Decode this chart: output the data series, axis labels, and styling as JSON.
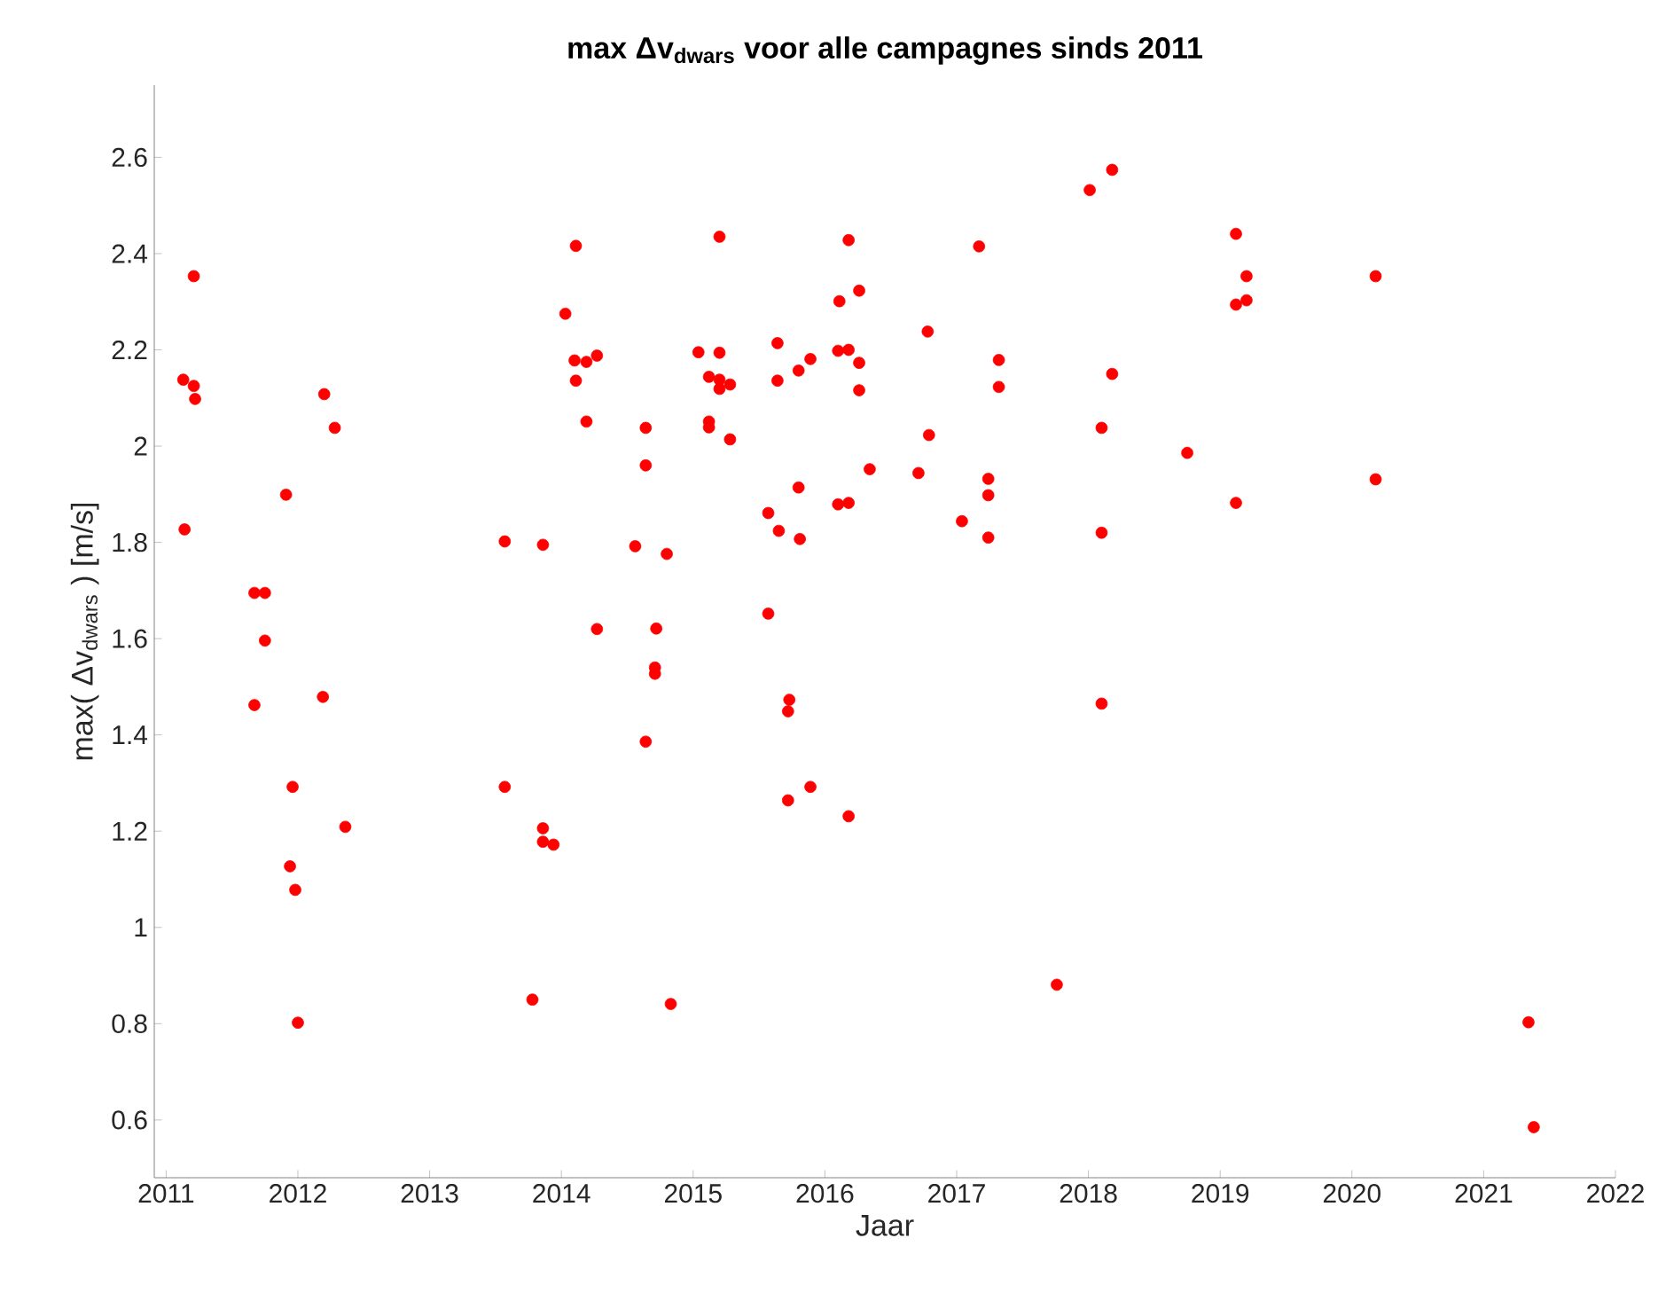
{
  "chart_data": {
    "type": "scatter",
    "title": "max Δv$_{dwars}$ voor alle campagnes sinds 2011",
    "xlabel": "Jaar",
    "ylabel": "max( Δv$_{dwars}$ )  [m/s]",
    "x": [
      2011.21,
      2011.13,
      2011.21,
      2011.22,
      2012.2,
      2012.28,
      2011.91,
      2011.14,
      2011.67,
      2011.75,
      2011.75,
      2011.67,
      2012.19,
      2011.96,
      2012.36,
      2011.94,
      2011.98,
      2012.0,
      2014.11,
      2014.03,
      2014.1,
      2014.19,
      2014.27,
      2014.11,
      2014.19,
      2014.64,
      2014.64,
      2013.57,
      2013.86,
      2014.56,
      2014.8,
      2014.27,
      2014.72,
      2014.71,
      2014.71,
      2014.64,
      2013.57,
      2013.86,
      2013.86,
      2013.94,
      2013.78,
      2014.83,
      2015.2,
      2016.18,
      2017.17,
      2018.01,
      2018.18,
      2016.11,
      2016.26,
      2016.78,
      2015.04,
      2015.2,
      2015.64,
      2015.12,
      2015.2,
      2015.2,
      2015.28,
      2015.8,
      2015.89,
      2015.64,
      2016.1,
      2016.18,
      2016.26,
      2016.26,
      2017.32,
      2017.32,
      2018.18,
      2015.12,
      2015.12,
      2015.28,
      2016.79,
      2018.1,
      2016.34,
      2016.71,
      2017.24,
      2017.24,
      2015.8,
      2015.57,
      2015.65,
      2015.81,
      2016.1,
      2016.18,
      2017.04,
      2017.24,
      2018.1,
      2015.57,
      2015.73,
      2015.72,
      2018.1,
      2015.89,
      2015.72,
      2016.18,
      2017.76,
      2019.12,
      2019.2,
      2019.12,
      2019.2,
      2020.18,
      2018.75,
      2019.12,
      2020.18,
      2021.34,
      2021.38
    ],
    "values": [
      2.353,
      2.138,
      2.125,
      2.098,
      2.108,
      2.038,
      1.899,
      1.827,
      1.695,
      1.695,
      1.596,
      1.462,
      1.479,
      1.292,
      1.209,
      1.127,
      1.078,
      0.802,
      2.416,
      2.275,
      2.178,
      2.175,
      2.188,
      2.136,
      2.051,
      2.038,
      1.96,
      1.802,
      1.795,
      1.792,
      1.776,
      1.62,
      1.621,
      1.54,
      1.527,
      1.386,
      1.292,
      1.206,
      1.178,
      1.172,
      0.85,
      0.841,
      2.435,
      2.428,
      2.415,
      2.532,
      2.574,
      2.301,
      2.323,
      2.238,
      2.195,
      2.194,
      2.214,
      2.144,
      2.138,
      2.119,
      2.128,
      2.157,
      2.181,
      2.136,
      2.198,
      2.2,
      2.173,
      2.116,
      2.179,
      2.123,
      2.15,
      2.051,
      2.039,
      2.014,
      2.023,
      2.038,
      1.952,
      1.944,
      1.932,
      1.898,
      1.914,
      1.861,
      1.824,
      1.807,
      1.879,
      1.882,
      1.844,
      1.81,
      1.82,
      1.652,
      1.473,
      1.449,
      1.465,
      1.292,
      1.264,
      1.231,
      0.881,
      2.441,
      2.353,
      2.294,
      2.303,
      2.353,
      1.986,
      1.882,
      1.931,
      0.803,
      0.585
    ],
    "color": "#ff0000",
    "marker": "circle",
    "grid": false,
    "xlim": [
      2010.91,
      2022
    ],
    "ylim": [
      0.48,
      2.75
    ],
    "xticks": [
      2011,
      2012,
      2013,
      2014,
      2015,
      2016,
      2017,
      2018,
      2019,
      2020,
      2021,
      2022
    ],
    "yticks": [
      0.6,
      0.8,
      1,
      1.2,
      1.4,
      1.6,
      1.8,
      2,
      2.2,
      2.4,
      2.6
    ]
  }
}
